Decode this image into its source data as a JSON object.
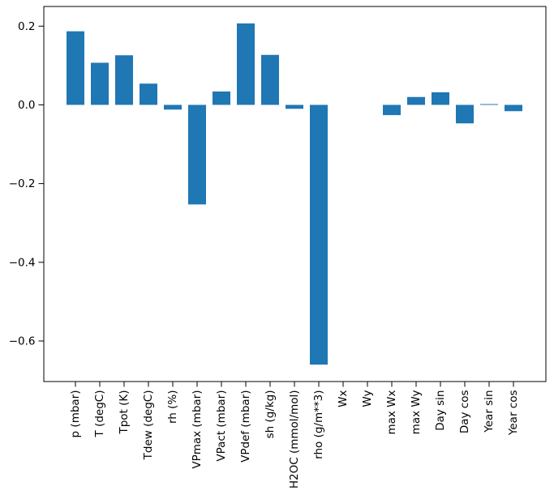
{
  "chart_data": {
    "type": "bar",
    "title": "",
    "xlabel": "",
    "ylabel": "",
    "categories": [
      "p (mbar)",
      "T (degC)",
      "Tpot (K)",
      "Tdew (degC)",
      "rh (%)",
      "VPmax (mbar)",
      "VPact (mbar)",
      "VPdef (mbar)",
      "sh (g/kg)",
      "H2OC (mmol/mol)",
      "rho (g/m**3)",
      "Wx",
      "Wy",
      "max Wx",
      "max Wy",
      "Day sin",
      "Day cos",
      "Year sin",
      "Year cos"
    ],
    "values": [
      0.187,
      0.107,
      0.126,
      0.054,
      -0.012,
      -0.253,
      0.034,
      0.207,
      0.127,
      -0.01,
      -0.66,
      0.0,
      0.0,
      -0.026,
      0.02,
      0.032,
      -0.047,
      0.002,
      -0.016
    ],
    "ytick_values": [
      0.2,
      0.0,
      -0.2,
      -0.4,
      -0.6
    ],
    "ytick_labels": [
      "0.2",
      "0.0",
      "−0.2",
      "−0.4",
      "−0.6"
    ],
    "ylim": [
      -0.703,
      0.25
    ],
    "x_tick_rotation": 90,
    "grid": false,
    "legend": null,
    "bar_color": "#1f77b4",
    "axis_color": "#000000",
    "background_color": "#ffffff"
  }
}
